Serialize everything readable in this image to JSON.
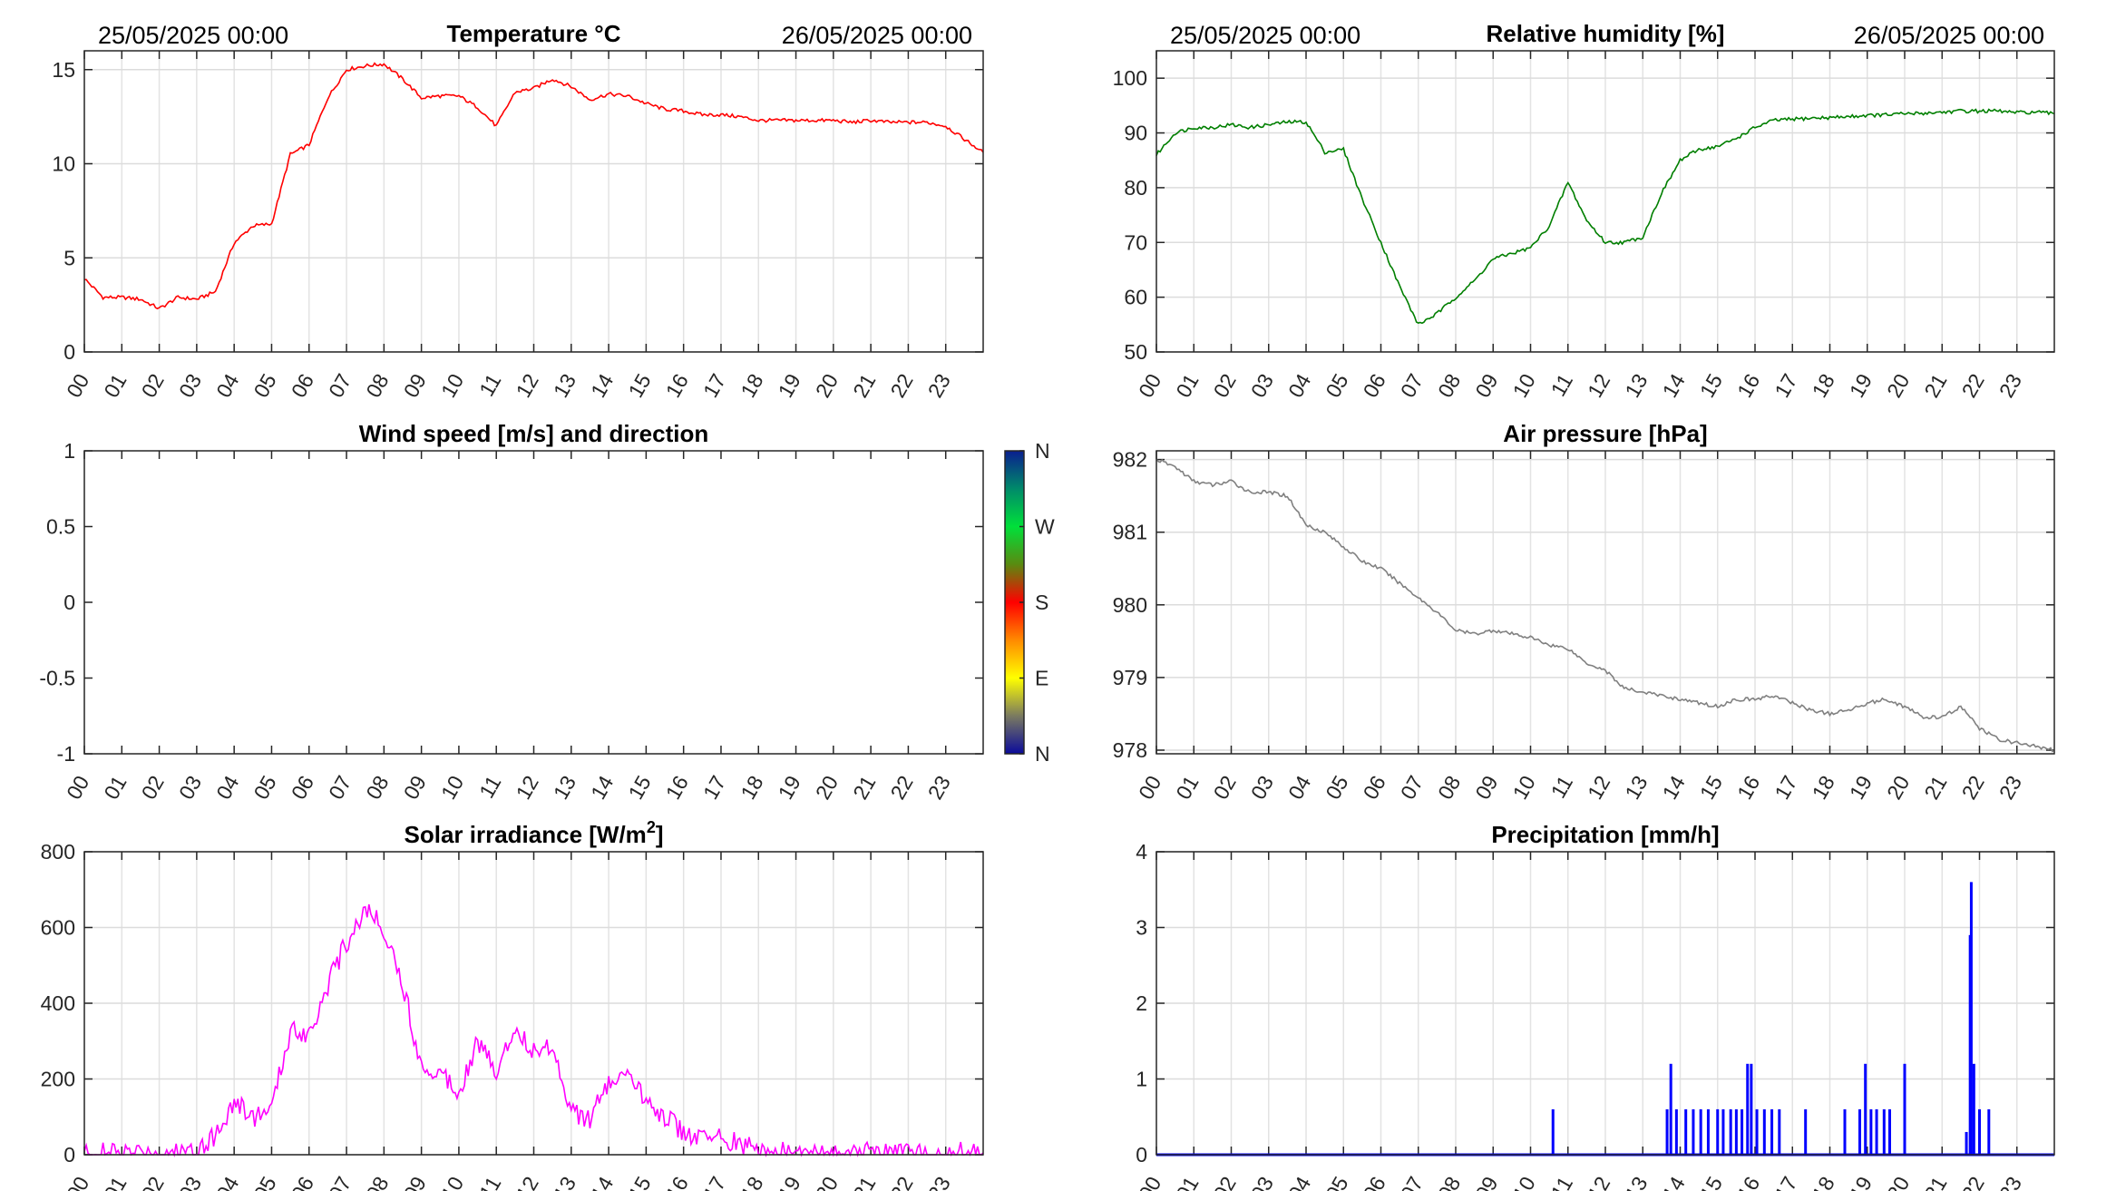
{
  "dates": {
    "start": "25/05/2025 00:00",
    "end": "26/05/2025 00:00"
  },
  "chart_data": [
    {
      "id": "temperature",
      "type": "line",
      "title": "Temperature °C",
      "color": "#ff0000",
      "xlabel": "",
      "ylabel": "",
      "xlim": [
        0,
        24
      ],
      "ylim": [
        0,
        16
      ],
      "yticks": [
        0,
        5,
        10,
        15
      ],
      "xtick_labels": [
        "00",
        "01",
        "02",
        "03",
        "04",
        "05",
        "06",
        "07",
        "08",
        "09",
        "10",
        "11",
        "12",
        "13",
        "14",
        "15",
        "16",
        "17",
        "18",
        "19",
        "20",
        "21",
        "22",
        "23"
      ],
      "grid": true,
      "x_step_hours": 0.5,
      "values": [
        3.9,
        2.9,
        2.9,
        2.8,
        2.3,
        2.9,
        2.8,
        3.2,
        5.8,
        6.7,
        6.8,
        10.5,
        11.0,
        13.5,
        15.0,
        15.2,
        15.3,
        14.5,
        13.5,
        13.6,
        13.6,
        13.0,
        12.0,
        13.8,
        14.0,
        14.5,
        14.1,
        13.4,
        13.7,
        13.6,
        13.2,
        12.9,
        12.8,
        12.6,
        12.6,
        12.5,
        12.3,
        12.3,
        12.3,
        12.3,
        12.3,
        12.2,
        12.3,
        12.2,
        12.2,
        12.2,
        12.0,
        11.3,
        10.6
      ]
    },
    {
      "id": "humidity",
      "type": "line",
      "title": "Relative humidity [%]",
      "color": "#007f00",
      "xlabel": "",
      "ylabel": "",
      "xlim": [
        0,
        24
      ],
      "ylim": [
        50,
        105
      ],
      "yticks": [
        50,
        60,
        70,
        80,
        90,
        100
      ],
      "xtick_labels": [
        "00",
        "01",
        "02",
        "03",
        "04",
        "05",
        "06",
        "07",
        "08",
        "09",
        "10",
        "11",
        "12",
        "13",
        "14",
        "15",
        "16",
        "17",
        "18",
        "19",
        "20",
        "21",
        "22",
        "23"
      ],
      "grid": true,
      "x_step_hours": 0.5,
      "values": [
        86,
        90,
        91,
        91,
        91.5,
        91,
        91.5,
        92,
        92,
        86.5,
        87,
        78,
        70,
        62,
        55,
        57,
        60,
        63,
        67,
        68,
        69,
        73,
        81,
        74,
        70,
        70,
        71,
        79,
        85,
        87,
        87.5,
        89,
        91,
        92.3,
        92.5,
        92.7,
        92.8,
        93,
        93.2,
        93.3,
        93.5,
        93.6,
        93.8,
        94,
        94,
        94,
        93.7,
        93.8,
        93.5
      ]
    },
    {
      "id": "wind",
      "type": "scatter",
      "title": "Wind speed [m/s] and direction",
      "xlabel": "",
      "ylabel": "",
      "xlim": [
        0,
        24
      ],
      "ylim": [
        -1,
        1
      ],
      "yticks": [
        -1,
        -0.5,
        0,
        0.5,
        1
      ],
      "ytick_labels": [
        "-1",
        "-0.5",
        "0",
        "0.5",
        "1"
      ],
      "xtick_labels": [
        "00",
        "01",
        "02",
        "03",
        "04",
        "05",
        "06",
        "07",
        "08",
        "09",
        "10",
        "11",
        "12",
        "13",
        "14",
        "15",
        "16",
        "17",
        "18",
        "19",
        "20",
        "21",
        "22",
        "23"
      ],
      "grid": false,
      "values": [],
      "colorbar": {
        "labels_top_to_bottom": [
          "N",
          "W",
          "S",
          "E",
          "N"
        ],
        "colors_top_to_bottom": [
          "#0a1f8f",
          "#00e03a",
          "#ff0000",
          "#ffff00",
          "#0a0a9a"
        ]
      }
    },
    {
      "id": "pressure",
      "type": "line",
      "title": "Air pressure [hPa]",
      "color": "#808080",
      "xlabel": "",
      "ylabel": "",
      "xlim": [
        0,
        24
      ],
      "ylim": [
        977.95,
        982.12
      ],
      "yticks": [
        978,
        979,
        980,
        981,
        982
      ],
      "xtick_labels": [
        "00",
        "01",
        "02",
        "03",
        "04",
        "05",
        "06",
        "07",
        "08",
        "09",
        "10",
        "11",
        "12",
        "13",
        "14",
        "15",
        "16",
        "17",
        "18",
        "19",
        "20",
        "21",
        "22",
        "23"
      ],
      "grid": true,
      "x_step_hours": 0.5,
      "values": [
        982.0,
        981.9,
        981.7,
        981.65,
        981.7,
        981.55,
        981.55,
        981.5,
        981.1,
        981.0,
        980.8,
        980.6,
        980.5,
        980.3,
        980.1,
        979.9,
        979.65,
        979.6,
        979.65,
        979.6,
        979.55,
        979.45,
        979.4,
        979.2,
        979.1,
        978.85,
        978.8,
        978.75,
        978.7,
        978.65,
        978.6,
        978.7,
        978.7,
        978.75,
        978.65,
        978.55,
        978.5,
        978.55,
        978.65,
        978.7,
        978.6,
        978.45,
        978.45,
        978.6,
        978.3,
        978.15,
        978.1,
        978.05,
        978.0
      ]
    },
    {
      "id": "solar",
      "type": "line",
      "title": "Solar irradiance [W/m",
      "title_sup": "2",
      "title_end": "]",
      "color": "#ff00ff",
      "xlabel": "",
      "ylabel": "",
      "xlim": [
        0,
        24
      ],
      "ylim": [
        0,
        800
      ],
      "yticks": [
        0,
        200,
        400,
        600,
        800
      ],
      "xtick_labels": [
        "00",
        "01",
        "02",
        "03",
        "04",
        "05",
        "06",
        "07",
        "08",
        "09",
        "10",
        "11",
        "12",
        "13",
        "14",
        "15",
        "16",
        "17",
        "18",
        "19",
        "20",
        "21",
        "22",
        "23"
      ],
      "grid": true,
      "x_step_hours": 0.5,
      "values": [
        5,
        5,
        5,
        5,
        5,
        5,
        20,
        50,
        140,
        100,
        120,
        330,
        320,
        450,
        560,
        650,
        600,
        450,
        230,
        220,
        170,
        300,
        220,
        340,
        270,
        290,
        120,
        90,
        190,
        200,
        150,
        100,
        60,
        40,
        50,
        25,
        15,
        5,
        5,
        5,
        5,
        5,
        5,
        5,
        5,
        5,
        5,
        5,
        5
      ]
    },
    {
      "id": "precipitation",
      "type": "bar",
      "title": "Precipitation [mm/h]",
      "color": "#0000ff",
      "xlabel": "",
      "ylabel": "",
      "xlim": [
        0,
        24
      ],
      "ylim": [
        0,
        4
      ],
      "yticks": [
        0,
        1,
        2,
        3,
        4
      ],
      "xtick_labels": [
        "00",
        "01",
        "02",
        "03",
        "04",
        "05",
        "06",
        "07",
        "08",
        "09",
        "10",
        "11",
        "12",
        "13",
        "14",
        "15",
        "16",
        "17",
        "18",
        "19",
        "20",
        "21",
        "22",
        "23"
      ],
      "grid": true,
      "events": [
        [
          10.6,
          0.6
        ],
        [
          13.65,
          0.6
        ],
        [
          13.75,
          1.2
        ],
        [
          13.9,
          0.6
        ],
        [
          14.15,
          0.6
        ],
        [
          14.35,
          0.6
        ],
        [
          14.55,
          0.6
        ],
        [
          14.75,
          0.6
        ],
        [
          15.0,
          0.6
        ],
        [
          15.15,
          0.6
        ],
        [
          15.35,
          0.6
        ],
        [
          15.5,
          0.6
        ],
        [
          15.65,
          0.6
        ],
        [
          15.8,
          1.2
        ],
        [
          15.9,
          1.2
        ],
        [
          16.05,
          0.6
        ],
        [
          16.25,
          0.6
        ],
        [
          16.45,
          0.6
        ],
        [
          16.65,
          0.6
        ],
        [
          17.35,
          0.6
        ],
        [
          18.4,
          0.6
        ],
        [
          18.8,
          0.6
        ],
        [
          18.95,
          1.2
        ],
        [
          19.1,
          0.6
        ],
        [
          19.25,
          0.6
        ],
        [
          19.45,
          0.6
        ],
        [
          19.6,
          0.6
        ],
        [
          20.0,
          1.2
        ],
        [
          21.65,
          0.3
        ],
        [
          21.75,
          2.9
        ],
        [
          21.78,
          3.6
        ],
        [
          21.85,
          1.2
        ],
        [
          22.0,
          0.6
        ],
        [
          22.25,
          0.6
        ]
      ]
    }
  ]
}
